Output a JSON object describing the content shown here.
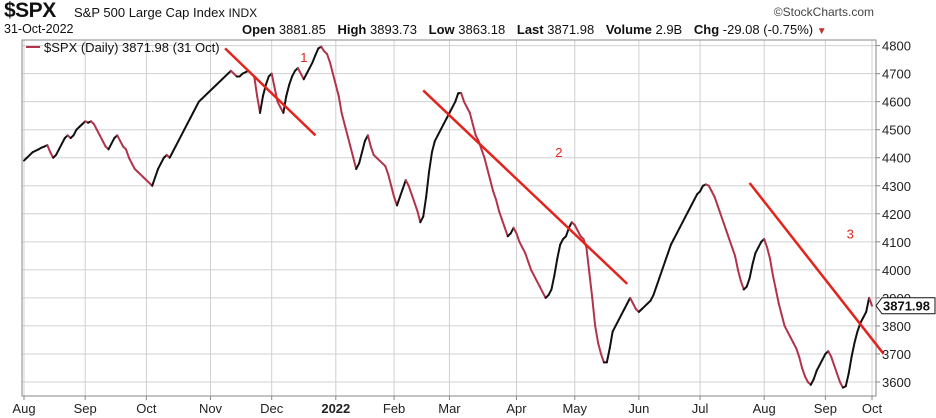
{
  "header": {
    "symbol": "$SPX",
    "name": "S&P 500 Large Cap Index",
    "exchange": "INDX",
    "brand": "©StockCharts.com",
    "date": "31-Oct-2022",
    "open_label": "Open",
    "open": "3881.85",
    "high_label": "High",
    "high": "3893.73",
    "low_label": "Low",
    "low": "3863.18",
    "last_label": "Last",
    "last": "3871.98",
    "volume_label": "Volume",
    "volume": "2.9B",
    "chg_label": "Chg",
    "chg": "-29.08 (-0.75%)",
    "chg_arrow": "▼"
  },
  "legend": {
    "text": "$SPX (Daily) 3871.98 (31 Oct)"
  },
  "colors": {
    "up": "#111111",
    "down": "#b2334a",
    "trend": "#e3231c",
    "grid": "#d0d0d0",
    "frame": "#888888"
  },
  "chart_data": {
    "type": "line",
    "title": "$SPX (Daily) 3871.98 (31 Oct)",
    "x_ticks": [
      "Aug",
      "Sep",
      "Oct",
      "Nov",
      "Dec",
      "2022",
      "Feb",
      "Mar",
      "Apr",
      "May",
      "Jun",
      "Jul",
      "Aug",
      "Sep",
      "Oct"
    ],
    "ylim": [
      3550,
      4820
    ],
    "y_ticks": [
      3600,
      3700,
      3800,
      3900,
      4000,
      4100,
      4200,
      4300,
      4400,
      4500,
      4600,
      4700,
      4800
    ],
    "last_value_label": "3871.98",
    "last_value": 3871.98,
    "series": [
      {
        "values": [
          4390,
          4400,
          4410,
          4420,
          4425,
          4430,
          4436,
          4440,
          4445,
          4420,
          4400,
          4410,
          4430,
          4450,
          4470,
          4480,
          4470,
          4480,
          4500,
          4510,
          4520,
          4530,
          4525,
          4530,
          4520,
          4500,
          4480,
          4460,
          4440,
          4430,
          4450,
          4470,
          4480,
          4460,
          4440,
          4430,
          4400,
          4380,
          4360,
          4350,
          4340,
          4330,
          4320,
          4310,
          4300,
          4330,
          4360,
          4380,
          4400,
          4410,
          4400,
          4420,
          4440,
          4460,
          4480,
          4500,
          4520,
          4540,
          4560,
          4580,
          4600,
          4610,
          4620,
          4630,
          4640,
          4650,
          4660,
          4670,
          4680,
          4690,
          4700,
          4710,
          4700,
          4690,
          4690,
          4700,
          4705,
          4710,
          4700,
          4690,
          4620,
          4560,
          4620,
          4660,
          4690,
          4700,
          4650,
          4600,
          4580,
          4560,
          4620,
          4660,
          4690,
          4710,
          4720,
          4700,
          4680,
          4700,
          4720,
          4740,
          4766,
          4790,
          4796,
          4780,
          4770,
          4740,
          4700,
          4660,
          4620,
          4560,
          4520,
          4480,
          4440,
          4400,
          4360,
          4380,
          4420,
          4460,
          4480,
          4440,
          4410,
          4400,
          4390,
          4380,
          4370,
          4340,
          4300,
          4260,
          4230,
          4260,
          4290,
          4320,
          4300,
          4270,
          4240,
          4210,
          4170,
          4190,
          4260,
          4350,
          4420,
          4460,
          4480,
          4500,
          4520,
          4540,
          4560,
          4580,
          4600,
          4630,
          4631,
          4600,
          4580,
          4560,
          4520,
          4480,
          4460,
          4430,
          4400,
          4360,
          4320,
          4280,
          4250,
          4210,
          4180,
          4150,
          4120,
          4130,
          4150,
          4130,
          4100,
          4080,
          4060,
          4030,
          4000,
          3980,
          3960,
          3940,
          3920,
          3900,
          3910,
          3930,
          3980,
          4040,
          4090,
          4110,
          4120,
          4150,
          4170,
          4160,
          4140,
          4120,
          4110,
          4080,
          3990,
          3900,
          3800,
          3740,
          3700,
          3670,
          3670,
          3720,
          3780,
          3800,
          3820,
          3840,
          3860,
          3880,
          3900,
          3880,
          3860,
          3850,
          3860,
          3870,
          3880,
          3890,
          3910,
          3940,
          3970,
          4000,
          4030,
          4060,
          4090,
          4110,
          4130,
          4150,
          4170,
          4190,
          4210,
          4230,
          4250,
          4270,
          4280,
          4300,
          4305,
          4300,
          4280,
          4260,
          4230,
          4200,
          4170,
          4140,
          4110,
          4080,
          4050,
          4000,
          3960,
          3930,
          3940,
          3970,
          4020,
          4060,
          4080,
          4100,
          4110,
          4080,
          4040,
          3980,
          3930,
          3880,
          3840,
          3800,
          3780,
          3760,
          3740,
          3720,
          3690,
          3650,
          3620,
          3600,
          3590,
          3610,
          3640,
          3660,
          3680,
          3700,
          3710,
          3690,
          3660,
          3630,
          3600,
          3580,
          3585,
          3630,
          3690,
          3740,
          3780,
          3810,
          3830,
          3850,
          3900,
          3871.98
        ]
      }
    ],
    "annotations": [
      {
        "label": "1",
        "line_from": {
          "x": 69,
          "y": 4790
        },
        "line_to": {
          "x": 100,
          "y": 4480
        }
      },
      {
        "label": "2",
        "line_from": {
          "x": 137,
          "y": 4640
        },
        "line_to": {
          "x": 207,
          "y": 3950
        }
      },
      {
        "label": "3",
        "line_from": {
          "x": 249,
          "y": 4310
        },
        "line_to": {
          "x": 295,
          "y": 3700
        }
      }
    ]
  }
}
